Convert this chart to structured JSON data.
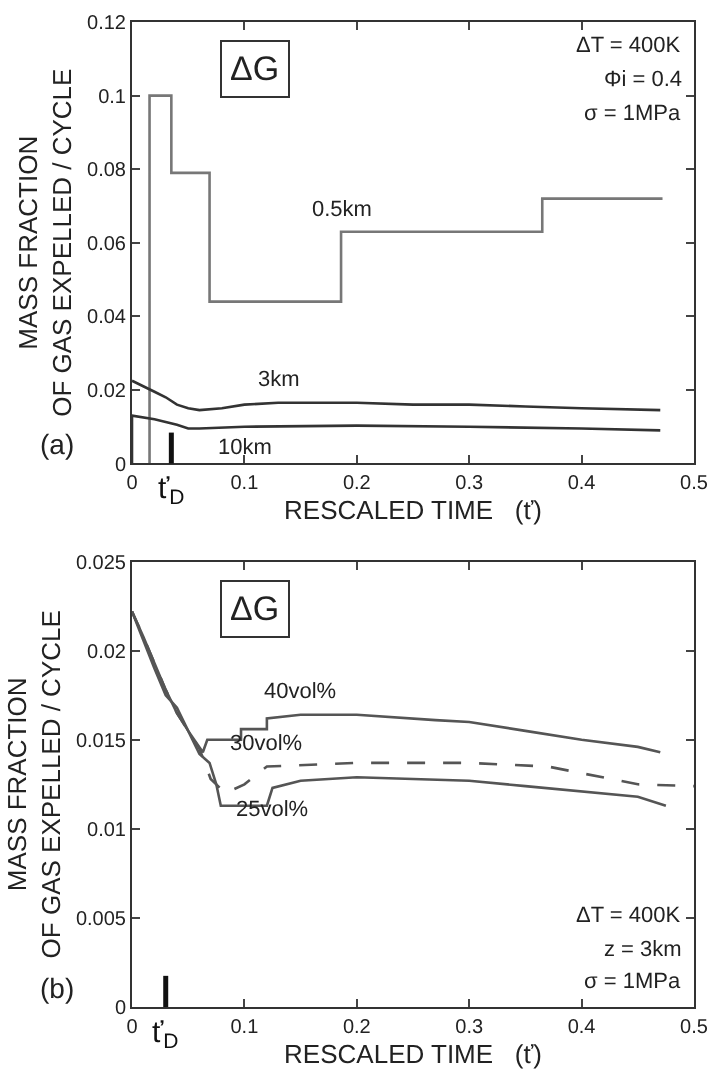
{
  "chart_data": [
    {
      "type": "line",
      "xlabel": "RESCALED TIME   (ť)",
      "ylabel": "MASS FRACTION\nOF GAS EXPELLED / CYCLE",
      "xlim": [
        0,
        0.5
      ],
      "xticks": [
        0,
        0.1,
        0.2,
        0.3,
        0.4,
        0.5
      ],
      "ylim": [
        0,
        0.12
      ],
      "yticks": [
        0,
        0.02,
        0.04,
        0.06,
        0.08,
        0.1,
        0.12
      ],
      "legend": false,
      "ref_lines": [
        {
          "axis": "x",
          "value": 0.035,
          "label": "ť$_{D}$",
          "color": "#111111"
        }
      ],
      "series": [
        {
          "name": "0.5km",
          "type": "step",
          "color": "#777777",
          "x": [
            0.0156,
            0.0156,
            0.035,
            0.069,
            0.186,
            0.365,
            0.472
          ],
          "values": [
            0,
            0.1,
            0.079,
            0.044,
            0.063,
            0.072,
            0.072
          ]
        },
        {
          "name": "3km",
          "color": "#333333",
          "x": [
            0,
            0.01,
            0.02,
            0.03,
            0.04,
            0.05,
            0.06,
            0.08,
            0.1,
            0.13,
            0.2,
            0.25,
            0.3,
            0.35,
            0.4,
            0.47
          ],
          "values": [
            0.0225,
            0.021,
            0.0195,
            0.018,
            0.016,
            0.015,
            0.0145,
            0.015,
            0.016,
            0.0165,
            0.0165,
            0.016,
            0.016,
            0.0155,
            0.015,
            0.0145
          ]
        },
        {
          "name": "10km",
          "color": "#333333",
          "x": [
            0,
            0,
            0.02,
            0.04,
            0.05,
            0.06,
            0.1,
            0.2,
            0.3,
            0.4,
            0.47
          ],
          "values": [
            0,
            0.013,
            0.012,
            0.0105,
            0.0095,
            0.0095,
            0.01,
            0.0103,
            0.01,
            0.0095,
            0.009
          ]
        }
      ],
      "annotations": [
        "ΔG",
        "ΔT = 400K",
        "Φi = 0.4",
        "σ = 1MPa",
        "(a)"
      ]
    },
    {
      "type": "line",
      "xlabel": "RESCALED TIME   (ť)",
      "ylabel": "MASS FRACTION\nOF GAS EXPELLED / CYCLE",
      "xlim": [
        0,
        0.5
      ],
      "xticks": [
        0,
        0.1,
        0.2,
        0.3,
        0.4,
        0.5
      ],
      "ylim": [
        0,
        0.025
      ],
      "yticks": [
        0,
        0.005,
        0.01,
        0.015,
        0.02,
        0.025
      ],
      "legend": false,
      "ref_lines": [
        {
          "axis": "x",
          "value": 0.03,
          "label": "ť$_{D}$",
          "color": "#111111"
        }
      ],
      "series": [
        {
          "name": "40vol%",
          "color": "#555555",
          "x": [
            0,
            0.01,
            0.02,
            0.03,
            0.04,
            0.05,
            0.063,
            0.067,
            0.097,
            0.097,
            0.12,
            0.12,
            0.15,
            0.2,
            0.27,
            0.3,
            0.35,
            0.4,
            0.45,
            0.47
          ],
          "values": [
            0.0222,
            0.0208,
            0.0193,
            0.0178,
            0.0165,
            0.0155,
            0.0143,
            0.015,
            0.015,
            0.0156,
            0.0156,
            0.0162,
            0.0164,
            0.0164,
            0.0161,
            0.016,
            0.0155,
            0.015,
            0.0146,
            0.0143
          ]
        },
        {
          "name": "30vol%",
          "color": "#555555",
          "line_style": "dashed",
          "x": [
            0,
            0.01,
            0.02,
            0.03,
            0.04,
            0.05,
            0.06,
            0.07,
            0.083,
            0.1,
            0.12,
            0.2,
            0.3,
            0.37,
            0.45,
            0.5
          ],
          "values": [
            0.0222,
            0.0208,
            0.0193,
            0.0178,
            0.0165,
            0.0155,
            0.0145,
            0.0128,
            0.012,
            0.0125,
            0.0135,
            0.0137,
            0.0137,
            0.0135,
            0.0125,
            0.0124
          ]
        },
        {
          "name": "25vol%",
          "color": "#555555",
          "x": [
            0,
            0.01,
            0.02,
            0.03,
            0.04,
            0.05,
            0.06,
            0.069,
            0.075,
            0.079,
            0.12,
            0.125,
            0.15,
            0.2,
            0.3,
            0.35,
            0.45,
            0.475
          ],
          "values": [
            0.0222,
            0.0206,
            0.019,
            0.0175,
            0.0168,
            0.0155,
            0.0142,
            0.0137,
            0.0125,
            0.0113,
            0.0113,
            0.0123,
            0.0127,
            0.0129,
            0.0127,
            0.0124,
            0.0118,
            0.0113
          ]
        }
      ],
      "annotations": [
        "ΔG",
        "ΔT = 400K",
        "z = 3km",
        "σ = 1MPa",
        "(b)"
      ]
    }
  ]
}
